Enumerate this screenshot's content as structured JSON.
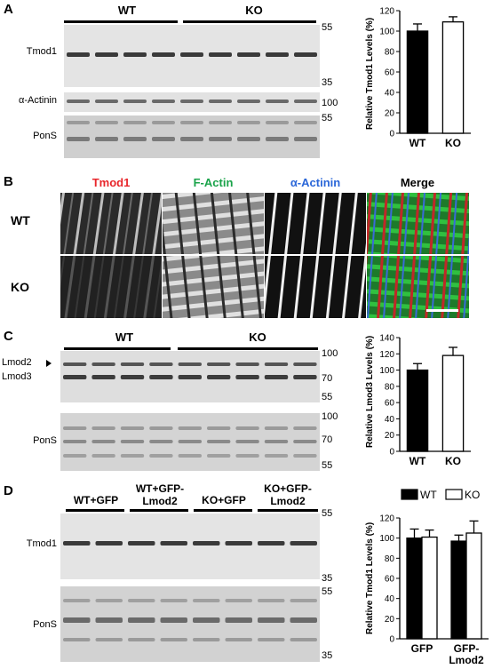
{
  "panels": {
    "A": {
      "label": "A",
      "groups": [
        "WT",
        "KO"
      ],
      "rows": [
        "Tmod1",
        "α-Actinin",
        "PonS"
      ],
      "markers": [
        "55",
        "35",
        "100",
        "55"
      ],
      "chart_ytitle": "Relative Tmod1 Levels (%)"
    },
    "B": {
      "label": "B",
      "columns": [
        "Tmod1",
        "F-Actin",
        "α-Actinin",
        "Merge"
      ],
      "column_colors": [
        "#e8262b",
        "#1aa34a",
        "#2a66d8",
        "#000000"
      ],
      "rows": [
        "WT",
        "KO"
      ]
    },
    "C": {
      "label": "C",
      "groups": [
        "WT",
        "KO"
      ],
      "rows": [
        "Lmod2",
        "Lmod3",
        "PonS"
      ],
      "markers_top": [
        "100",
        "70",
        "55"
      ],
      "markers_bottom": [
        "100",
        "70",
        "55"
      ],
      "chart_ytitle": "Relative Lmod3 Levels (%)"
    },
    "D": {
      "label": "D",
      "groups": [
        "WT+GFP",
        "WT+GFP-\nLmod2",
        "KO+GFP",
        "KO+GFP-\nLmod2"
      ],
      "rows": [
        "Tmod1",
        "PonS"
      ],
      "markers_top": [
        "55",
        "35"
      ],
      "markers_bottom": [
        "55",
        "35"
      ],
      "chart_ytitle": "Relative Tmod1 Levels (%)"
    }
  },
  "chart_data": [
    {
      "id": "A",
      "type": "bar",
      "categories": [
        "WT",
        "KO"
      ],
      "values": [
        100,
        109
      ],
      "errors": [
        7,
        5
      ],
      "fills": [
        "#000000",
        "#ffffff"
      ],
      "ylabel": "Relative Tmod1 Levels (%)",
      "ylim": [
        0,
        120
      ],
      "yticks": [
        0,
        20,
        40,
        60,
        80,
        100,
        120
      ]
    },
    {
      "id": "C",
      "type": "bar",
      "categories": [
        "WT",
        "KO"
      ],
      "values": [
        100,
        118
      ],
      "errors": [
        8,
        10
      ],
      "fills": [
        "#000000",
        "#ffffff"
      ],
      "ylabel": "Relative Lmod3 Levels (%)",
      "ylim": [
        0,
        140
      ],
      "yticks": [
        0,
        20,
        40,
        60,
        80,
        100,
        120,
        140
      ]
    },
    {
      "id": "D",
      "type": "bar",
      "categories": [
        "GFP",
        "GFP-\nLmod2"
      ],
      "series": [
        {
          "name": "WT",
          "values": [
            100,
            97
          ],
          "errors": [
            9,
            6
          ],
          "fill": "#000000"
        },
        {
          "name": "KO",
          "values": [
            101,
            105
          ],
          "errors": [
            7,
            12
          ],
          "fill": "#ffffff"
        }
      ],
      "ylabel": "Relative Tmod1 Levels (%)",
      "ylim": [
        0,
        120
      ],
      "yticks": [
        0,
        20,
        40,
        60,
        80,
        100,
        120
      ],
      "legend": "top"
    }
  ]
}
